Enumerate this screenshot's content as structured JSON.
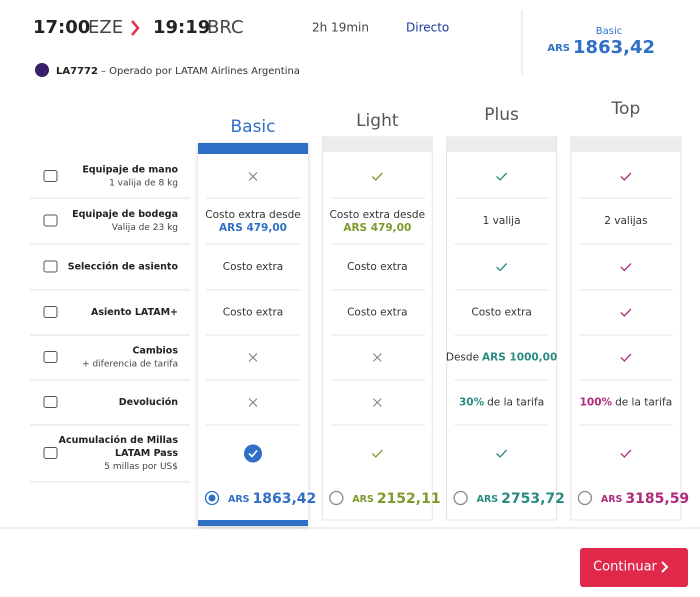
{
  "header": {
    "departure_time": "17:00",
    "departure_airport": "EZE",
    "arrival_time": "19:19",
    "arrival_airport": "BRC",
    "duration": "2h 19min",
    "stops": "Directo",
    "selected_fare": "Basic",
    "selected_currency": "ARS",
    "selected_price": "1863,42"
  },
  "flight": {
    "number": "LA7772",
    "operator": "– Operado por LATAM Airlines Argentina"
  },
  "features": [
    {
      "title": "Equipaje de mano",
      "subtitle": "1 valija de 8 kg"
    },
    {
      "title": "Equipaje de bodega",
      "subtitle": "Valija de 23 kg"
    },
    {
      "title": "Selección de asiento"
    },
    {
      "title": "Asiento LATAM+"
    },
    {
      "title": "Cambios",
      "subtitle": "+ diferencia de tarifa"
    },
    {
      "title": "Devolución"
    },
    {
      "title": "Acumulación de Millas",
      "title_line2": "LATAM Pass",
      "subtitle": "5 millas por US$"
    }
  ],
  "fares": [
    {
      "name": "Basic",
      "color": "#2f6fc5",
      "selected": true,
      "currency": "ARS",
      "price": "1863,42",
      "cells": [
        {
          "mark": "cross"
        },
        {
          "text": "Costo extra desde",
          "accent": "ARS 479,00",
          "accent_position": "below"
        },
        {
          "text": "Costo extra"
        },
        {
          "text": "Costo extra"
        },
        {
          "mark": "cross"
        },
        {
          "mark": "cross"
        },
        {
          "mark": "check-circle"
        }
      ]
    },
    {
      "name": "Light",
      "color": "#7d9b2b",
      "selected": false,
      "currency": "ARS",
      "price": "2152,11",
      "cells": [
        {
          "mark": "check"
        },
        {
          "text": "Costo extra desde",
          "accent": "ARS 479,00",
          "accent_position": "below"
        },
        {
          "text": "Costo extra"
        },
        {
          "text": "Costo extra"
        },
        {
          "mark": "cross"
        },
        {
          "mark": "cross"
        },
        {
          "mark": "check"
        }
      ]
    },
    {
      "name": "Plus",
      "color": "#2a8b80",
      "selected": false,
      "currency": "ARS",
      "price": "2753,72",
      "cells": [
        {
          "mark": "check"
        },
        {
          "text": "1 valija"
        },
        {
          "mark": "check"
        },
        {
          "text": "Costo extra"
        },
        {
          "text": "Desde",
          "accent": "ARS 1000,00",
          "accent_position": "after"
        },
        {
          "accent": "30%",
          "text": "de la tarifa",
          "accent_position": "before"
        },
        {
          "mark": "check"
        }
      ]
    },
    {
      "name": "Top",
      "color": "#b02a7d",
      "selected": false,
      "currency": "ARS",
      "price": "3185,59",
      "cells": [
        {
          "mark": "check"
        },
        {
          "text": "2 valijas"
        },
        {
          "mark": "check"
        },
        {
          "mark": "check"
        },
        {
          "mark": "check"
        },
        {
          "accent": "100%",
          "text": "de la tarifa",
          "accent_position": "before"
        },
        {
          "mark": "check"
        }
      ]
    }
  ],
  "button": "Continuar"
}
